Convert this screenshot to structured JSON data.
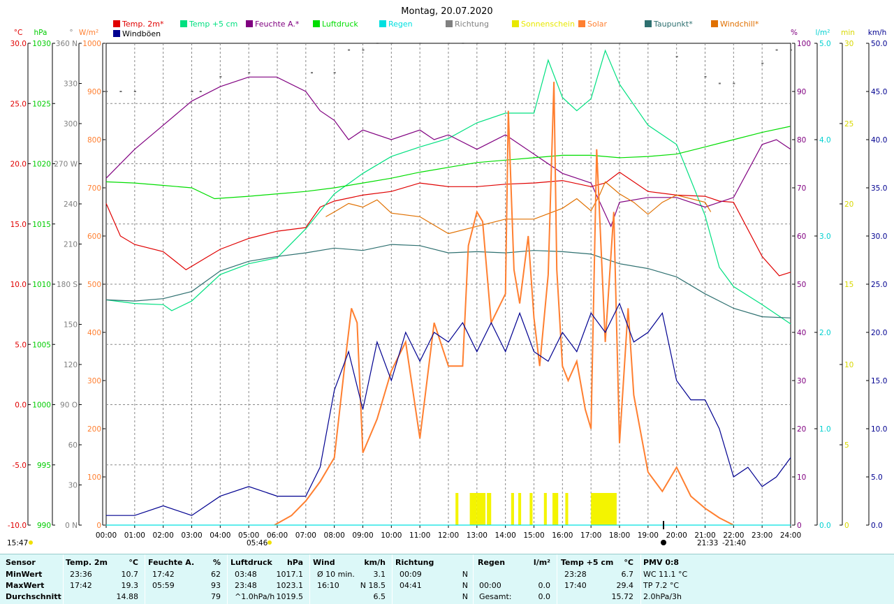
{
  "title": "Montag, 20.07.2020",
  "legend": [
    {
      "label": "Temp. 2m*",
      "color": "#e00000"
    },
    {
      "label": "Temp +5 cm",
      "color": "#00e080"
    },
    {
      "label": "Feuchte A.*",
      "color": "#800080"
    },
    {
      "label": "Luftdruck",
      "color": "#00dd00"
    },
    {
      "label": "Regen",
      "color": "#00e0e0"
    },
    {
      "label": "Richtung",
      "color": "#808080"
    },
    {
      "label": "Sonnenschein",
      "color": "#e8e800"
    },
    {
      "label": "Solar",
      "color": "#ff7f30"
    },
    {
      "label": "Taupunkt*",
      "color": "#2e7070"
    },
    {
      "label": "Windchill*",
      "color": "#e07000"
    },
    {
      "label": "Windböen",
      "color": "#000090"
    }
  ],
  "left_axes": [
    {
      "unit": "°C",
      "color": "#e00000",
      "ticks": [
        "30.0",
        "25.0",
        "20.0",
        "15.0",
        "10.0",
        "5.0",
        "0.0",
        "-5.0",
        "-10.0"
      ]
    },
    {
      "unit": "hPa",
      "color": "#00cc00",
      "ticks": [
        "1030",
        "1025",
        "1020",
        "1015",
        "1010",
        "1005",
        "1000",
        "995",
        "990"
      ]
    },
    {
      "unit": "°",
      "color": "#808080",
      "ticks": [
        "360 N",
        "330",
        "300",
        "270 W",
        "240",
        "210",
        "180 S",
        "150",
        "120",
        "90 O",
        "60",
        "30",
        "0 N"
      ]
    },
    {
      "unit": "W/m²",
      "color": "#ff7f30",
      "ticks": [
        "1000",
        "900",
        "800",
        "700",
        "600",
        "500",
        "400",
        "300",
        "200",
        "100",
        "0"
      ]
    }
  ],
  "right_axes": [
    {
      "unit": "%",
      "color": "#800080",
      "ticks": [
        "100",
        "90",
        "80",
        "70",
        "60",
        "50",
        "40",
        "30",
        "20",
        "10",
        "0"
      ]
    },
    {
      "unit": "l/m²",
      "color": "#00d0d0",
      "ticks": [
        "5.0",
        "4.0",
        "3.0",
        "2.0",
        "1.0",
        "0.0"
      ]
    },
    {
      "unit": "min",
      "color": "#d8d800",
      "ticks": [
        "30",
        "25",
        "20",
        "15",
        "10",
        "5",
        "0"
      ]
    },
    {
      "unit": "km/h",
      "color": "#000090",
      "ticks": [
        "50.0",
        "45.0",
        "40.0",
        "35.0",
        "30.0",
        "25.0",
        "20.0",
        "15.0",
        "10.0",
        "5.0",
        "0.0"
      ]
    }
  ],
  "x_ticks": [
    "00:00",
    "01:00",
    "02:00",
    "03:00",
    "04:00",
    "05:00",
    "06:00",
    "07:00",
    "08:00",
    "09:00",
    "10:00",
    "11:00",
    "12:00",
    "13:00",
    "14:00",
    "15:00",
    "16:00",
    "17:00",
    "18:00",
    "19:00",
    "20:00",
    "21:00",
    "22:00",
    "23:00",
    "24:00"
  ],
  "markers": {
    "moonset": "15:47",
    "sunrise": "05:46",
    "sunrise2": "05:46",
    "dusk": "21:33",
    "sunset": "21:40"
  },
  "chart_data": {
    "type": "line",
    "x_unit": "hour",
    "series": [
      {
        "name": "Temp. 2m*",
        "unit": "°C",
        "axis": "°C",
        "color": "#e00000",
        "x": [
          0,
          0.5,
          1,
          2,
          2.8,
          3.5,
          4,
          5,
          6,
          7,
          7.5,
          8,
          9,
          10,
          11,
          12,
          13,
          14,
          15,
          16,
          17,
          17.5,
          18,
          19,
          20,
          21,
          21.5,
          22,
          23,
          23.6,
          24
        ],
        "y": [
          16.7,
          14.0,
          13.3,
          12.7,
          11.2,
          12.2,
          12.9,
          13.8,
          14.4,
          14.7,
          16.4,
          16.9,
          17.4,
          17.7,
          18.4,
          18.1,
          18.1,
          18.3,
          18.4,
          18.6,
          18.1,
          18.4,
          19.3,
          17.7,
          17.4,
          17.3,
          16.9,
          16.8,
          12.3,
          10.7,
          11.0
        ]
      },
      {
        "name": "Temp +5 cm",
        "unit": "°C",
        "axis": "°C",
        "color": "#00e080",
        "x": [
          0,
          1,
          2,
          2.3,
          3,
          4,
          5,
          6,
          7,
          8,
          9,
          10,
          11,
          12,
          13,
          14,
          15,
          15.5,
          16,
          16.5,
          17,
          17.5,
          18,
          19,
          20,
          21,
          21.5,
          22,
          23,
          24
        ],
        "y": [
          8.7,
          8.4,
          8.3,
          7.8,
          8.6,
          10.8,
          11.7,
          12.2,
          14.6,
          17.5,
          19.2,
          20.6,
          21.4,
          22.1,
          23.4,
          24.2,
          24.2,
          28.6,
          25.5,
          24.4,
          25.4,
          29.4,
          26.6,
          23.2,
          21.6,
          15.7,
          11.4,
          9.8,
          8.3,
          6.7
        ]
      },
      {
        "name": "Feuchte A.*",
        "unit": "%",
        "axis": "%",
        "color": "#800080",
        "x": [
          0,
          1,
          2,
          3,
          4,
          5,
          5.98,
          7,
          7.5,
          8,
          8.5,
          9,
          10,
          11,
          11.5,
          12,
          13,
          14,
          15,
          16,
          17,
          17.7,
          18,
          19,
          20,
          21,
          22,
          23,
          23.5,
          24
        ],
        "y": [
          72,
          78,
          83,
          88,
          91,
          93,
          93,
          90,
          86,
          84,
          80,
          82,
          80,
          82,
          80,
          81,
          78,
          81,
          77,
          73,
          71,
          62,
          67,
          68,
          68,
          66,
          68,
          79,
          80,
          78
        ]
      },
      {
        "name": "Luftdruck",
        "unit": "hPa",
        "axis": "hPa",
        "color": "#00dd00",
        "x": [
          0,
          1,
          2,
          3,
          3.8,
          5,
          6,
          7,
          8,
          9,
          10,
          11,
          12,
          13,
          14,
          15,
          16,
          17,
          18,
          19,
          20,
          21,
          22,
          23,
          23.98
        ],
        "y": [
          1018.5,
          1018.4,
          1018.2,
          1018.0,
          1017.1,
          1017.3,
          1017.5,
          1017.7,
          1018.0,
          1018.4,
          1018.8,
          1019.3,
          1019.7,
          1020.1,
          1020.3,
          1020.5,
          1020.7,
          1020.7,
          1020.5,
          1020.6,
          1020.8,
          1021.4,
          1022.0,
          1022.6,
          1023.1
        ]
      },
      {
        "name": "Taupunkt*",
        "unit": "°C",
        "axis": "°C",
        "color": "#2e7070",
        "x": [
          0,
          1,
          2,
          3,
          4,
          5,
          6,
          7,
          8,
          9,
          10,
          11,
          12,
          13,
          14,
          15,
          16,
          17,
          18,
          19,
          20,
          21,
          22,
          23,
          24
        ],
        "y": [
          8.7,
          8.6,
          8.8,
          9.4,
          11.1,
          11.9,
          12.3,
          12.6,
          13.0,
          12.8,
          13.3,
          13.2,
          12.6,
          12.7,
          12.6,
          12.8,
          12.7,
          12.5,
          11.7,
          11.3,
          10.6,
          9.2,
          8.0,
          7.3,
          7.2
        ]
      },
      {
        "name": "Windchill*",
        "unit": "°C",
        "axis": "°C",
        "color": "#e07000",
        "x": [
          7.7,
          8,
          8.5,
          9,
          9.5,
          10,
          11,
          12,
          13,
          14,
          15,
          16,
          16.5,
          17,
          17.3,
          17.5,
          18,
          18.5,
          19,
          19.5,
          20,
          21,
          21.2
        ],
        "y": [
          15.6,
          16.0,
          16.7,
          16.4,
          17.0,
          15.9,
          15.6,
          14.2,
          14.8,
          15.4,
          15.4,
          16.3,
          17.1,
          16.1,
          17.4,
          18.5,
          17.5,
          16.8,
          15.8,
          16.8,
          17.4,
          16.8,
          16.0
        ]
      },
      {
        "name": "Solar",
        "unit": "W/m²",
        "axis": "W/m²",
        "color": "#ff7f30",
        "x": [
          5.9,
          6.5,
          7,
          7.5,
          8,
          8.4,
          8.6,
          8.8,
          9,
          9.5,
          10,
          10.5,
          11,
          11.5,
          12,
          12.5,
          12.7,
          13,
          13.2,
          13.5,
          14,
          14.1,
          14.3,
          14.5,
          14.8,
          15,
          15.2,
          15.5,
          15.7,
          15.8,
          16,
          16.2,
          16.5,
          16.8,
          17,
          17.2,
          17.5,
          17.8,
          18,
          18.3,
          18.5,
          19,
          19.5,
          20,
          20.5,
          21,
          21.5,
          22
        ],
        "y": [
          0,
          20,
          50,
          90,
          140,
          350,
          450,
          420,
          150,
          220,
          320,
          380,
          180,
          420,
          330,
          330,
          580,
          650,
          630,
          420,
          480,
          860,
          530,
          460,
          600,
          430,
          330,
          520,
          920,
          530,
          330,
          300,
          340,
          240,
          200,
          780,
          380,
          650,
          170,
          450,
          270,
          110,
          70,
          120,
          60,
          35,
          15,
          0
        ]
      },
      {
        "name": "Windböen",
        "unit": "km/h",
        "axis": "km/h",
        "color": "#000090",
        "x": [
          0,
          1,
          2,
          3,
          4,
          5,
          6,
          7,
          7.5,
          8,
          8.5,
          9,
          9.5,
          10,
          10.5,
          11,
          11.5,
          12,
          12.5,
          13,
          13.5,
          14,
          14.5,
          15,
          15.5,
          16,
          16.5,
          17,
          17.5,
          18,
          18.5,
          19,
          19.5,
          20,
          20.5,
          21,
          21.5,
          22,
          22.5,
          23,
          23.5,
          24
        ],
        "y": [
          1,
          1,
          2,
          1,
          3,
          4,
          3,
          3,
          6,
          14,
          18,
          12,
          19,
          15,
          20,
          17,
          20,
          19,
          21,
          18,
          21,
          18,
          22,
          18,
          17,
          20,
          18,
          22,
          20,
          23,
          19,
          20,
          22,
          15,
          13,
          13,
          10,
          5,
          6,
          4,
          5,
          7
        ]
      },
      {
        "name": "Regen",
        "unit": "l/m²",
        "axis": "l/m²",
        "color": "#00e0e0",
        "x": [
          0,
          24
        ],
        "y": [
          0.0,
          0.0
        ]
      }
    ],
    "sunshine_bars_hours": [
      [
        12.25,
        12.35
      ],
      [
        12.75,
        13.0
      ],
      [
        13.0,
        13.3
      ],
      [
        13.35,
        13.5
      ],
      [
        14.2,
        14.3
      ],
      [
        14.45,
        14.55
      ],
      [
        14.85,
        14.95
      ],
      [
        15.35,
        15.45
      ],
      [
        15.65,
        15.85
      ],
      [
        16.1,
        16.2
      ],
      [
        17.0,
        17.9
      ]
    ],
    "wind_direction_deg": {
      "x": [
        0,
        0.5,
        1,
        3,
        3.3,
        4,
        5,
        7.2,
        8,
        8.5,
        9,
        9.5,
        10,
        11,
        12,
        12.5,
        13,
        14,
        15,
        16,
        17,
        18,
        19,
        20,
        21,
        21.5,
        22,
        23,
        23.5,
        24
      ],
      "y": [
        324,
        324,
        324,
        324,
        324,
        335,
        338,
        338,
        338,
        355,
        355,
        360,
        360,
        360,
        360,
        360,
        360,
        360,
        360,
        360,
        360,
        360,
        360,
        350,
        335,
        330,
        330,
        345,
        355,
        355
      ]
    },
    "xlim": [
      0,
      24
    ],
    "ylim_temp": [
      -10,
      30
    ],
    "ylim_pressure": [
      990,
      1030
    ],
    "ylim_solar": [
      0,
      1000
    ],
    "ylim_humidity": [
      0,
      100
    ],
    "ylim_wind": [
      0,
      50
    ],
    "grid": true
  },
  "table": {
    "headers": [
      {
        "title": "Sensor",
        "unit": ""
      },
      {
        "title": "Temp. 2m",
        "unit": "°C"
      },
      {
        "title": "Feuchte A.",
        "unit": "%"
      },
      {
        "title": "Luftdruck",
        "unit": "hPa"
      },
      {
        "title": "Wind",
        "unit": "km/h"
      },
      {
        "title": "Richtung",
        "unit": ""
      },
      {
        "title": "Regen",
        "unit": "l/m²"
      },
      {
        "title": "Temp +5 cm",
        "unit": "°C"
      },
      {
        "title": "PMV 0:8",
        "unit": ""
      }
    ],
    "rows": [
      {
        "label": "MinWert",
        "temp_time": "23:36",
        "temp_val": "10.7",
        "hum_time": "17:42",
        "hum_val": "62",
        "press_time": "03:48",
        "press_val": "1017.1",
        "wind_time": "Ø 10 min.",
        "wind_val": "3.1",
        "dir_time": "00:09",
        "dir_val": "N",
        "rain_time": "",
        "rain_val": "",
        "t5_time": "23:28",
        "t5_val": "6.7",
        "pmv": "WC 11.1 °C"
      },
      {
        "label": "MaxWert",
        "temp_time": "17:42",
        "temp_val": "19.3",
        "hum_time": "05:59",
        "hum_val": "93",
        "press_time": "23:48",
        "press_val": "1023.1",
        "wind_time": "16:10",
        "wind_val": "N 18.5",
        "dir_time": "04:41",
        "dir_val": "N",
        "rain_time": "00:00",
        "rain_val": "0.0",
        "t5_time": "17:40",
        "t5_val": "29.4",
        "pmv": "TP 7.2 °C"
      },
      {
        "label": "Durchschnitt",
        "temp_time": "",
        "temp_val": "14.88",
        "hum_time": "",
        "hum_val": "79",
        "press_time": "^1.0hPa/h",
        "press_val": "1019.5",
        "wind_time": "",
        "wind_val": "6.5",
        "dir_time": "",
        "dir_val": "N",
        "rain_time": "Gesamt:",
        "rain_val": "0.0",
        "t5_time": "",
        "t5_val": "15.72",
        "pmv": "2.0hPa/3h"
      }
    ]
  }
}
